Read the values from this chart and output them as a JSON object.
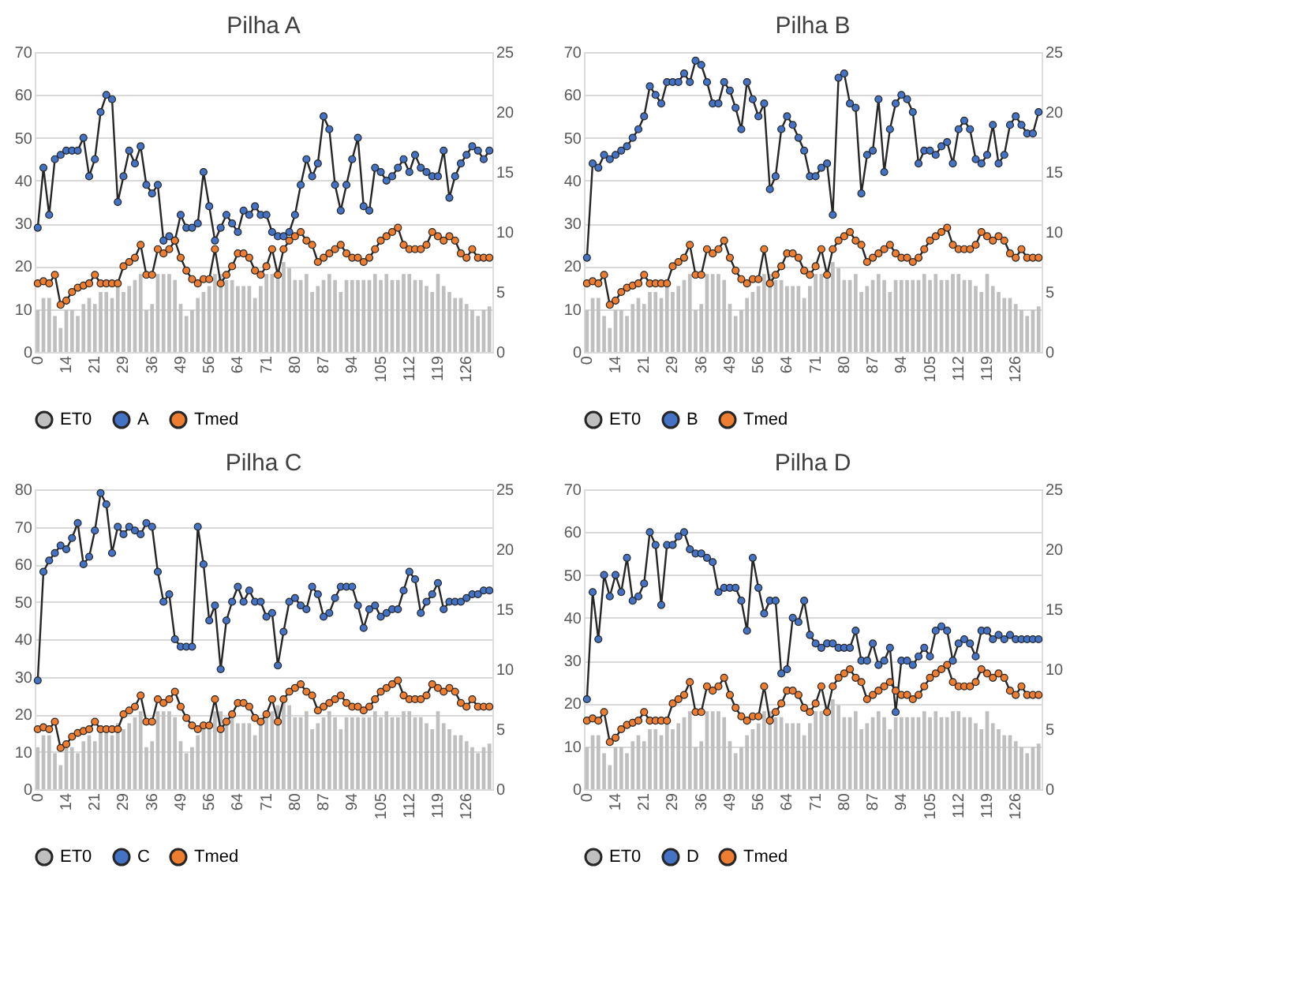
{
  "chart_data": [
    {
      "type": "line",
      "title": "Pilha A",
      "categories": [
        "0",
        null,
        null,
        null,
        null,
        "14",
        null,
        null,
        null,
        null,
        "21",
        null,
        null,
        null,
        null,
        "29",
        null,
        null,
        null,
        null,
        "36",
        null,
        null,
        null,
        null,
        "49",
        null,
        null,
        null,
        null,
        "56",
        null,
        null,
        null,
        null,
        "64",
        null,
        null,
        null,
        null,
        "71",
        null,
        null,
        null,
        null,
        "80",
        null,
        null,
        null,
        null,
        "87",
        null,
        null,
        null,
        null,
        "94",
        null,
        null,
        null,
        null,
        "105",
        null,
        null,
        null,
        null,
        "112",
        null,
        null,
        null,
        null,
        "119",
        null,
        null,
        null,
        null,
        "126",
        null,
        null,
        null,
        null
      ],
      "ylim": [
        0,
        70
      ],
      "yticks": [
        0,
        10,
        20,
        30,
        40,
        50,
        60,
        70
      ],
      "y2lim": [
        0,
        25
      ],
      "y2ticks": [
        0,
        5,
        10,
        15,
        20,
        25
      ],
      "grid": "y",
      "legend": "bottom",
      "marker": "circle",
      "series": [
        {
          "name": "ET0",
          "type": "bar",
          "axis": "y2",
          "color": "#bfbfbf",
          "values": [
            3.5,
            4.5,
            4.5,
            3,
            2,
            3.5,
            3.5,
            3,
            4,
            4.5,
            4,
            5,
            5,
            4.5,
            5.5,
            5,
            5.5,
            6,
            6.5,
            3.5,
            4,
            6.5,
            6.5,
            6.5,
            6,
            4,
            3,
            3.5,
            4.5,
            5,
            5.5,
            6.5,
            6.5,
            6,
            6,
            5.5,
            5.5,
            5.5,
            4.5,
            5.5,
            6.5,
            6.5,
            7,
            7.5,
            7,
            6,
            6,
            6.5,
            5,
            5.5,
            6,
            6.5,
            6,
            5,
            6,
            6,
            6,
            6,
            6,
            6.5,
            6,
            6.5,
            6,
            6,
            6.5,
            6.5,
            6,
            6,
            5.5,
            5,
            6.5,
            5.5,
            5,
            4.5,
            4.5,
            4,
            3.5,
            3,
            3.5,
            3.8
          ]
        },
        {
          "name": "A",
          "color": "#4472c4",
          "values": [
            29,
            43,
            32,
            45,
            46,
            47,
            47,
            47,
            50,
            41,
            45,
            56,
            60,
            59,
            35,
            41,
            47,
            44,
            48,
            39,
            37,
            39,
            26,
            27,
            26,
            32,
            29,
            29,
            30,
            42,
            34,
            26,
            29,
            32,
            30,
            28,
            33,
            32,
            34,
            32,
            32,
            28,
            27,
            27,
            28,
            32,
            39,
            45,
            41,
            44,
            55,
            52,
            39,
            33,
            39,
            45,
            50,
            34,
            33,
            43,
            42,
            40,
            41,
            43,
            45,
            42,
            46,
            43,
            42,
            41,
            41,
            47,
            36,
            41,
            44,
            46,
            48,
            47,
            45,
            47
          ]
        },
        {
          "name": "Tmed",
          "type": "line",
          "color": "#ed7d31",
          "values": [
            16,
            16.5,
            16,
            18,
            11,
            12,
            14,
            15,
            15.5,
            16,
            18,
            16,
            16,
            16,
            16,
            20,
            21,
            22,
            25,
            18,
            18,
            24,
            23,
            24,
            26,
            22,
            19,
            17,
            16,
            17,
            17,
            24,
            16,
            18,
            20,
            23,
            23,
            22,
            19,
            18,
            20,
            24,
            18,
            24,
            26,
            27,
            28,
            26,
            25,
            21,
            22,
            23,
            24,
            25,
            23,
            22,
            22,
            21,
            22,
            24,
            26,
            27,
            28,
            29,
            25,
            24,
            24,
            24,
            25,
            28,
            27,
            26,
            27,
            26,
            23,
            22,
            24,
            22,
            22,
            22
          ]
        }
      ]
    },
    {
      "type": "line",
      "title": "Pilha B",
      "categories": [
        "0",
        null,
        null,
        null,
        null,
        "14",
        null,
        null,
        null,
        null,
        "21",
        null,
        null,
        null,
        null,
        "29",
        null,
        null,
        null,
        null,
        "36",
        null,
        null,
        null,
        null,
        "49",
        null,
        null,
        null,
        null,
        "56",
        null,
        null,
        null,
        null,
        "64",
        null,
        null,
        null,
        null,
        "71",
        null,
        null,
        null,
        null,
        "80",
        null,
        null,
        null,
        null,
        "87",
        null,
        null,
        null,
        null,
        "94",
        null,
        null,
        null,
        null,
        "105",
        null,
        null,
        null,
        null,
        "112",
        null,
        null,
        null,
        null,
        "119",
        null,
        null,
        null,
        null,
        "126",
        null,
        null,
        null,
        null
      ],
      "ylim": [
        0,
        70
      ],
      "yticks": [
        0,
        10,
        20,
        30,
        40,
        50,
        60,
        70
      ],
      "y2lim": [
        0,
        25
      ],
      "y2ticks": [
        0,
        5,
        10,
        15,
        20,
        25
      ],
      "grid": "y",
      "legend": "bottom",
      "marker": "circle",
      "series": [
        {
          "name": "ET0",
          "type": "bar",
          "axis": "y2",
          "color": "#bfbfbf",
          "values": [
            3.5,
            4.5,
            4.5,
            3,
            2,
            3.5,
            3.5,
            3,
            4,
            4.5,
            4,
            5,
            5,
            4.5,
            5.5,
            5,
            5.5,
            6,
            6.5,
            3.5,
            4,
            6.5,
            6.5,
            6.5,
            6,
            4,
            3,
            3.5,
            4.5,
            5,
            5.5,
            6.5,
            6.5,
            6,
            6,
            5.5,
            5.5,
            5.5,
            4.5,
            5.5,
            6.5,
            6.5,
            7,
            7.5,
            7,
            6,
            6,
            6.5,
            5,
            5.5,
            6,
            6.5,
            6,
            5,
            6,
            6,
            6,
            6,
            6,
            6.5,
            6,
            6.5,
            6,
            6,
            6.5,
            6.5,
            6,
            6,
            5.5,
            5,
            6.5,
            5.5,
            5,
            4.5,
            4.5,
            4,
            3.5,
            3,
            3.5,
            3.8
          ]
        },
        {
          "name": "B",
          "color": "#4472c4",
          "values": [
            22,
            44,
            43,
            46,
            45,
            46,
            47,
            48,
            50,
            52,
            55,
            62,
            60,
            58,
            63,
            63,
            63,
            65,
            63,
            68,
            67,
            63,
            58,
            58,
            63,
            61,
            57,
            52,
            63,
            59,
            55,
            58,
            38,
            41,
            52,
            55,
            53,
            50,
            47,
            41,
            41,
            43,
            44,
            32,
            64,
            65,
            58,
            57,
            37,
            46,
            47,
            59,
            42,
            52,
            58,
            60,
            59,
            56,
            44,
            47,
            47,
            46,
            48,
            49,
            44,
            52,
            54,
            52,
            45,
            44,
            46,
            53,
            44,
            46,
            53,
            55,
            53,
            51,
            51,
            56
          ]
        },
        {
          "name": "Tmed",
          "type": "line",
          "color": "#ed7d31",
          "values": [
            16,
            16.5,
            16,
            18,
            11,
            12,
            14,
            15,
            15.5,
            16,
            18,
            16,
            16,
            16,
            16,
            20,
            21,
            22,
            25,
            18,
            18,
            24,
            23,
            24,
            26,
            22,
            19,
            17,
            16,
            17,
            17,
            24,
            16,
            18,
            20,
            23,
            23,
            22,
            19,
            18,
            20,
            24,
            18,
            24,
            26,
            27,
            28,
            26,
            25,
            21,
            22,
            23,
            24,
            25,
            23,
            22,
            22,
            21,
            22,
            24,
            26,
            27,
            28,
            29,
            25,
            24,
            24,
            24,
            25,
            28,
            27,
            26,
            27,
            26,
            23,
            22,
            24,
            22,
            22,
            22
          ]
        }
      ]
    },
    {
      "type": "line",
      "title": "Pilha C",
      "categories": [
        "0",
        null,
        null,
        null,
        null,
        "14",
        null,
        null,
        null,
        null,
        "21",
        null,
        null,
        null,
        null,
        "29",
        null,
        null,
        null,
        null,
        "36",
        null,
        null,
        null,
        null,
        "49",
        null,
        null,
        null,
        null,
        "56",
        null,
        null,
        null,
        null,
        "64",
        null,
        null,
        null,
        null,
        "71",
        null,
        null,
        null,
        null,
        "80",
        null,
        null,
        null,
        null,
        "87",
        null,
        null,
        null,
        null,
        "94",
        null,
        null,
        null,
        null,
        "105",
        null,
        null,
        null,
        null,
        "112",
        null,
        null,
        null,
        null,
        "119",
        null,
        null,
        null,
        null,
        "126",
        null,
        null,
        null,
        null
      ],
      "ylim": [
        0,
        80
      ],
      "yticks": [
        0,
        10,
        20,
        30,
        40,
        50,
        60,
        70,
        80
      ],
      "y2lim": [
        0,
        25
      ],
      "y2ticks": [
        0,
        5,
        10,
        15,
        20,
        25
      ],
      "grid": "y",
      "legend": "bottom",
      "marker": "circle",
      "series": [
        {
          "name": "ET0",
          "type": "bar",
          "axis": "y2",
          "color": "#bfbfbf",
          "values": [
            3.5,
            4.5,
            4.5,
            3,
            2,
            3.5,
            3.5,
            3,
            4,
            4.5,
            4,
            5,
            5,
            4.5,
            5.5,
            5,
            5.5,
            6,
            6.5,
            3.5,
            4,
            6.5,
            6.5,
            6.5,
            6,
            4,
            3,
            3.5,
            4.5,
            5,
            5.5,
            6.5,
            6.5,
            6,
            6,
            5.5,
            5.5,
            5.5,
            4.5,
            5.5,
            6.5,
            6.5,
            7,
            7.5,
            7,
            6,
            6,
            6.5,
            5,
            5.5,
            6,
            6.5,
            6,
            5,
            6,
            6,
            6,
            6,
            6,
            6.5,
            6,
            6.5,
            6,
            6,
            6.5,
            6.5,
            6,
            6,
            5.5,
            5,
            6.5,
            5.5,
            5,
            4.5,
            4.5,
            4,
            3.5,
            3,
            3.5,
            3.8
          ]
        },
        {
          "name": "C",
          "color": "#4472c4",
          "values": [
            29,
            58,
            61,
            63,
            65,
            64,
            67,
            71,
            60,
            62,
            69,
            79,
            76,
            63,
            70,
            68,
            70,
            69,
            68,
            71,
            70,
            58,
            50,
            52,
            40,
            38,
            38,
            38,
            70,
            60,
            45,
            49,
            32,
            45,
            50,
            54,
            50,
            53,
            50,
            50,
            46,
            47,
            33,
            42,
            50,
            51,
            49,
            48,
            54,
            52,
            46,
            47,
            51,
            54,
            54,
            54,
            49,
            43,
            48,
            49,
            46,
            47,
            48,
            48,
            53,
            58,
            56,
            47,
            50,
            52,
            55,
            48,
            50,
            50,
            50,
            51,
            52,
            52,
            53,
            53
          ]
        },
        {
          "name": "Tmed",
          "type": "line",
          "color": "#ed7d31",
          "values": [
            16,
            16.5,
            16,
            18,
            11,
            12,
            14,
            15,
            15.5,
            16,
            18,
            16,
            16,
            16,
            16,
            20,
            21,
            22,
            25,
            18,
            18,
            24,
            23,
            24,
            26,
            22,
            19,
            17,
            16,
            17,
            17,
            24,
            16,
            18,
            20,
            23,
            23,
            22,
            19,
            18,
            20,
            24,
            18,
            24,
            26,
            27,
            28,
            26,
            25,
            21,
            22,
            23,
            24,
            25,
            23,
            22,
            22,
            21,
            22,
            24,
            26,
            27,
            28,
            29,
            25,
            24,
            24,
            24,
            25,
            28,
            27,
            26,
            27,
            26,
            23,
            22,
            24,
            22,
            22,
            22
          ]
        }
      ]
    },
    {
      "type": "line",
      "title": "Pilha D",
      "categories": [
        "0",
        null,
        null,
        null,
        null,
        "14",
        null,
        null,
        null,
        null,
        "21",
        null,
        null,
        null,
        null,
        "29",
        null,
        null,
        null,
        null,
        "36",
        null,
        null,
        null,
        null,
        "49",
        null,
        null,
        null,
        null,
        "56",
        null,
        null,
        null,
        null,
        "64",
        null,
        null,
        null,
        null,
        "71",
        null,
        null,
        null,
        null,
        "80",
        null,
        null,
        null,
        null,
        "87",
        null,
        null,
        null,
        null,
        "94",
        null,
        null,
        null,
        null,
        "105",
        null,
        null,
        null,
        null,
        "112",
        null,
        null,
        null,
        null,
        "119",
        null,
        null,
        null,
        null,
        "126",
        null,
        null,
        null,
        null
      ],
      "ylim": [
        0,
        70
      ],
      "yticks": [
        0,
        10,
        20,
        30,
        40,
        50,
        60,
        70
      ],
      "y2lim": [
        0,
        25
      ],
      "y2ticks": [
        0,
        5,
        10,
        15,
        20,
        25
      ],
      "grid": "y",
      "legend": "bottom",
      "marker": "circle",
      "series": [
        {
          "name": "ET0",
          "type": "bar",
          "axis": "y2",
          "color": "#bfbfbf",
          "values": [
            3.5,
            4.5,
            4.5,
            3,
            2,
            3.5,
            3.5,
            3,
            4,
            4.5,
            4,
            5,
            5,
            4.5,
            5.5,
            5,
            5.5,
            6,
            6.5,
            3.5,
            4,
            6.5,
            6.5,
            6.5,
            6,
            4,
            3,
            3.5,
            4.5,
            5,
            5.5,
            6.5,
            6.5,
            6,
            6,
            5.5,
            5.5,
            5.5,
            4.5,
            5.5,
            6.5,
            6.5,
            7,
            7.5,
            7,
            6,
            6,
            6.5,
            5,
            5.5,
            6,
            6.5,
            6,
            5,
            6,
            6,
            6,
            6,
            6,
            6.5,
            6,
            6.5,
            6,
            6,
            6.5,
            6.5,
            6,
            6,
            5.5,
            5,
            6.5,
            5.5,
            5,
            4.5,
            4.5,
            4,
            3.5,
            3,
            3.5,
            3.8
          ]
        },
        {
          "name": "D",
          "color": "#4472c4",
          "values": [
            21,
            46,
            35,
            50,
            45,
            50,
            46,
            54,
            44,
            45,
            48,
            60,
            57,
            43,
            57,
            57,
            59,
            60,
            56,
            55,
            55,
            54,
            53,
            46,
            47,
            47,
            47,
            44,
            37,
            54,
            47,
            41,
            44,
            44,
            27,
            28,
            40,
            39,
            44,
            36,
            34,
            33,
            34,
            34,
            33,
            33,
            33,
            37,
            30,
            30,
            34,
            29,
            30,
            33,
            18,
            30,
            30,
            29,
            31,
            33,
            31,
            37,
            38,
            37,
            30,
            34,
            35,
            34,
            31,
            37,
            37,
            35,
            36,
            35,
            36,
            35,
            35,
            35,
            35,
            35
          ]
        },
        {
          "name": "Tmed",
          "type": "line",
          "color": "#ed7d31",
          "values": [
            16,
            16.5,
            16,
            18,
            11,
            12,
            14,
            15,
            15.5,
            16,
            18,
            16,
            16,
            16,
            16,
            20,
            21,
            22,
            25,
            18,
            18,
            24,
            23,
            24,
            26,
            22,
            19,
            17,
            16,
            17,
            17,
            24,
            16,
            18,
            20,
            23,
            23,
            22,
            19,
            18,
            20,
            24,
            18,
            24,
            26,
            27,
            28,
            26,
            25,
            21,
            22,
            23,
            24,
            25,
            23,
            22,
            22,
            21,
            22,
            24,
            26,
            27,
            28,
            29,
            25,
            24,
            24,
            24,
            25,
            28,
            27,
            26,
            27,
            26,
            23,
            22,
            24,
            22,
            22,
            22
          ]
        }
      ]
    }
  ]
}
